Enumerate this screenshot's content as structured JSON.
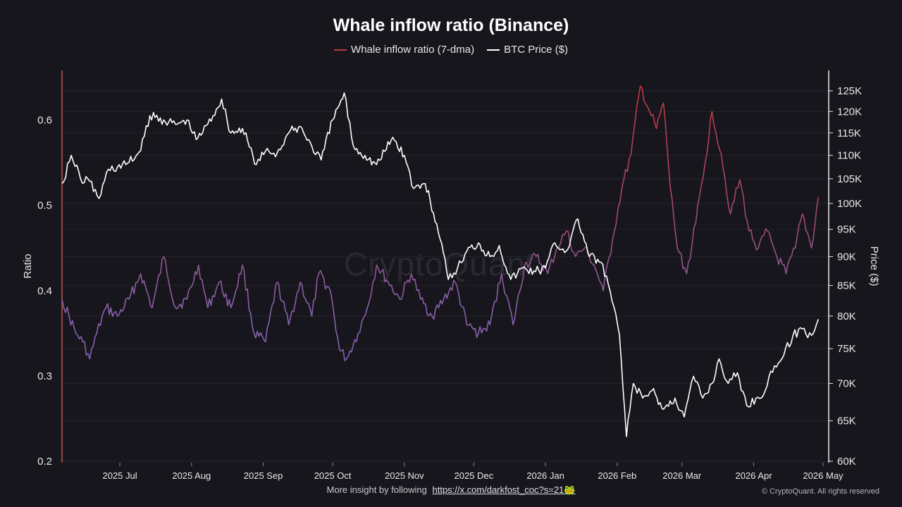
{
  "chart_data": {
    "type": "line",
    "title": "Whale inflow ratio (Binance)",
    "left_axis_label": "Ratio",
    "right_axis_label": "Price ($)",
    "left_ticks": [
      "0.2",
      "0.3",
      "0.4",
      "0.5",
      "0.6"
    ],
    "left_ylim": [
      0.2,
      0.65
    ],
    "right_ticks": [
      "60K",
      "65K",
      "70K",
      "75K",
      "80K",
      "85K",
      "90K",
      "95K",
      "100K",
      "105K",
      "110K",
      "115K",
      "120K",
      "125K"
    ],
    "right_scale": "log",
    "right_ylim": [
      60000,
      128000
    ],
    "x_ticks": [
      "2025 Jul",
      "2025 Aug",
      "2025 Sep",
      "2025 Oct",
      "2025 Nov",
      "2025 Dec",
      "2026 Jan",
      "2026 Feb",
      "2026 Mar",
      "2026 Apr",
      "2026 May"
    ],
    "x_range": [
      "2025-06-06",
      "2026-05-01"
    ],
    "grid": "horizontal",
    "legend_position": "top-center",
    "series": [
      {
        "name": "Whale inflow ratio (7-dma)",
        "color_low": "#7b6fc7",
        "color_high": "#b03a3e",
        "points": [
          [
            "2025-06-06",
            0.39
          ],
          [
            "2025-06-12",
            0.35
          ],
          [
            "2025-06-15",
            0.34
          ],
          [
            "2025-06-18",
            0.32
          ],
          [
            "2025-06-21",
            0.35
          ],
          [
            "2025-06-25",
            0.38
          ],
          [
            "2025-06-30",
            0.37
          ],
          [
            "2025-07-05",
            0.39
          ],
          [
            "2025-07-10",
            0.42
          ],
          [
            "2025-07-15",
            0.38
          ],
          [
            "2025-07-20",
            0.44
          ],
          [
            "2025-07-25",
            0.38
          ],
          [
            "2025-07-30",
            0.39
          ],
          [
            "2025-08-04",
            0.43
          ],
          [
            "2025-08-08",
            0.38
          ],
          [
            "2025-08-13",
            0.41
          ],
          [
            "2025-08-18",
            0.38
          ],
          [
            "2025-08-23",
            0.43
          ],
          [
            "2025-08-28",
            0.35
          ],
          [
            "2025-09-02",
            0.34
          ],
          [
            "2025-09-07",
            0.41
          ],
          [
            "2025-09-12",
            0.36
          ],
          [
            "2025-09-17",
            0.41
          ],
          [
            "2025-09-22",
            0.37
          ],
          [
            "2025-09-25",
            0.42
          ],
          [
            "2025-09-30",
            0.4
          ],
          [
            "2025-10-04",
            0.33
          ],
          [
            "2025-10-07",
            0.32
          ],
          [
            "2025-10-12",
            0.35
          ],
          [
            "2025-10-16",
            0.38
          ],
          [
            "2025-10-20",
            0.43
          ],
          [
            "2025-10-25",
            0.41
          ],
          [
            "2025-10-30",
            0.39
          ],
          [
            "2025-11-04",
            0.42
          ],
          [
            "2025-11-08",
            0.39
          ],
          [
            "2025-11-13",
            0.37
          ],
          [
            "2025-11-18",
            0.39
          ],
          [
            "2025-11-23",
            0.41
          ],
          [
            "2025-11-28",
            0.36
          ],
          [
            "2025-12-03",
            0.35
          ],
          [
            "2025-12-08",
            0.36
          ],
          [
            "2025-12-13",
            0.42
          ],
          [
            "2025-12-18",
            0.36
          ],
          [
            "2025-12-23",
            0.43
          ],
          [
            "2025-12-28",
            0.44
          ],
          [
            "2026-01-02",
            0.42
          ],
          [
            "2026-01-06",
            0.45
          ],
          [
            "2026-01-10",
            0.47
          ],
          [
            "2026-01-14",
            0.44
          ],
          [
            "2026-01-18",
            0.45
          ],
          [
            "2026-01-22",
            0.43
          ],
          [
            "2026-01-26",
            0.4
          ],
          [
            "2026-01-30",
            0.46
          ],
          [
            "2026-02-03",
            0.52
          ],
          [
            "2026-02-07",
            0.56
          ],
          [
            "2026-02-11",
            0.64
          ],
          [
            "2026-02-15",
            0.61
          ],
          [
            "2026-02-18",
            0.59
          ],
          [
            "2026-02-21",
            0.62
          ],
          [
            "2026-02-24",
            0.52
          ],
          [
            "2026-02-27",
            0.45
          ],
          [
            "2026-03-03",
            0.42
          ],
          [
            "2026-03-07",
            0.48
          ],
          [
            "2026-03-11",
            0.55
          ],
          [
            "2026-03-14",
            0.61
          ],
          [
            "2026-03-18",
            0.56
          ],
          [
            "2026-03-22",
            0.49
          ],
          [
            "2026-03-26",
            0.53
          ],
          [
            "2026-03-30",
            0.47
          ],
          [
            "2026-04-03",
            0.45
          ],
          [
            "2026-04-07",
            0.47
          ],
          [
            "2026-04-11",
            0.44
          ],
          [
            "2026-04-15",
            0.42
          ],
          [
            "2026-04-19",
            0.45
          ],
          [
            "2026-04-22",
            0.49
          ],
          [
            "2026-04-26",
            0.45
          ],
          [
            "2026-04-29",
            0.51
          ]
        ]
      },
      {
        "name": "BTC Price ($)",
        "color": "#ffffff",
        "points": [
          [
            "2025-06-06",
            104000
          ],
          [
            "2025-06-10",
            110000
          ],
          [
            "2025-06-14",
            105000
          ],
          [
            "2025-06-18",
            104500
          ],
          [
            "2025-06-22",
            101000
          ],
          [
            "2025-06-26",
            107000
          ],
          [
            "2025-06-30",
            107500
          ],
          [
            "2025-07-05",
            108500
          ],
          [
            "2025-07-10",
            111000
          ],
          [
            "2025-07-14",
            119000
          ],
          [
            "2025-07-20",
            118000
          ],
          [
            "2025-07-25",
            117000
          ],
          [
            "2025-07-30",
            118000
          ],
          [
            "2025-08-03",
            113500
          ],
          [
            "2025-08-08",
            117000
          ],
          [
            "2025-08-14",
            123000
          ],
          [
            "2025-08-18",
            115000
          ],
          [
            "2025-08-23",
            116000
          ],
          [
            "2025-08-29",
            108000
          ],
          [
            "2025-09-02",
            111000
          ],
          [
            "2025-09-07",
            110500
          ],
          [
            "2025-09-12",
            115000
          ],
          [
            "2025-09-17",
            116500
          ],
          [
            "2025-09-22",
            112000
          ],
          [
            "2025-09-26",
            109000
          ],
          [
            "2025-10-01",
            118000
          ],
          [
            "2025-10-06",
            124500
          ],
          [
            "2025-10-10",
            112000
          ],
          [
            "2025-10-15",
            110000
          ],
          [
            "2025-10-20",
            108000
          ],
          [
            "2025-10-27",
            114000
          ],
          [
            "2025-11-01",
            110000
          ],
          [
            "2025-11-05",
            103000
          ],
          [
            "2025-11-10",
            104000
          ],
          [
            "2025-11-15",
            96000
          ],
          [
            "2025-11-20",
            86000
          ],
          [
            "2025-11-24",
            88000
          ],
          [
            "2025-11-28",
            91000
          ],
          [
            "2025-12-03",
            92500
          ],
          [
            "2025-12-08",
            90000
          ],
          [
            "2025-12-12",
            92000
          ],
          [
            "2025-12-17",
            86000
          ],
          [
            "2025-12-22",
            88000
          ],
          [
            "2025-12-27",
            87500
          ],
          [
            "2026-01-01",
            88000
          ],
          [
            "2026-01-05",
            92500
          ],
          [
            "2026-01-10",
            91000
          ],
          [
            "2026-01-15",
            97000
          ],
          [
            "2026-01-20",
            90000
          ],
          [
            "2026-01-25",
            89000
          ],
          [
            "2026-01-29",
            84000
          ],
          [
            "2026-02-02",
            77000
          ],
          [
            "2026-02-05",
            63000
          ],
          [
            "2026-02-08",
            70000
          ],
          [
            "2026-02-12",
            68000
          ],
          [
            "2026-02-16",
            69000
          ],
          [
            "2026-02-21",
            66500
          ],
          [
            "2026-02-26",
            68000
          ],
          [
            "2026-03-02",
            65500
          ],
          [
            "2026-03-06",
            71000
          ],
          [
            "2026-03-10",
            68000
          ],
          [
            "2026-03-14",
            70000
          ],
          [
            "2026-03-17",
            73500
          ],
          [
            "2026-03-21",
            70000
          ],
          [
            "2026-03-25",
            71500
          ],
          [
            "2026-03-29",
            67000
          ],
          [
            "2026-04-02",
            68000
          ],
          [
            "2026-04-06",
            69000
          ],
          [
            "2026-04-10",
            72500
          ],
          [
            "2026-04-14",
            74000
          ],
          [
            "2026-04-18",
            77000
          ],
          [
            "2026-04-22",
            78000
          ],
          [
            "2026-04-26",
            77000
          ],
          [
            "2026-04-29",
            79500
          ]
        ]
      }
    ]
  },
  "watermark": "CryptoQuant",
  "footer": {
    "text": "More insight by following",
    "link": "https://x.com/darkfost_coc?s=21🐸"
  },
  "copyright": "© CryptoQuant. All rights reserved"
}
